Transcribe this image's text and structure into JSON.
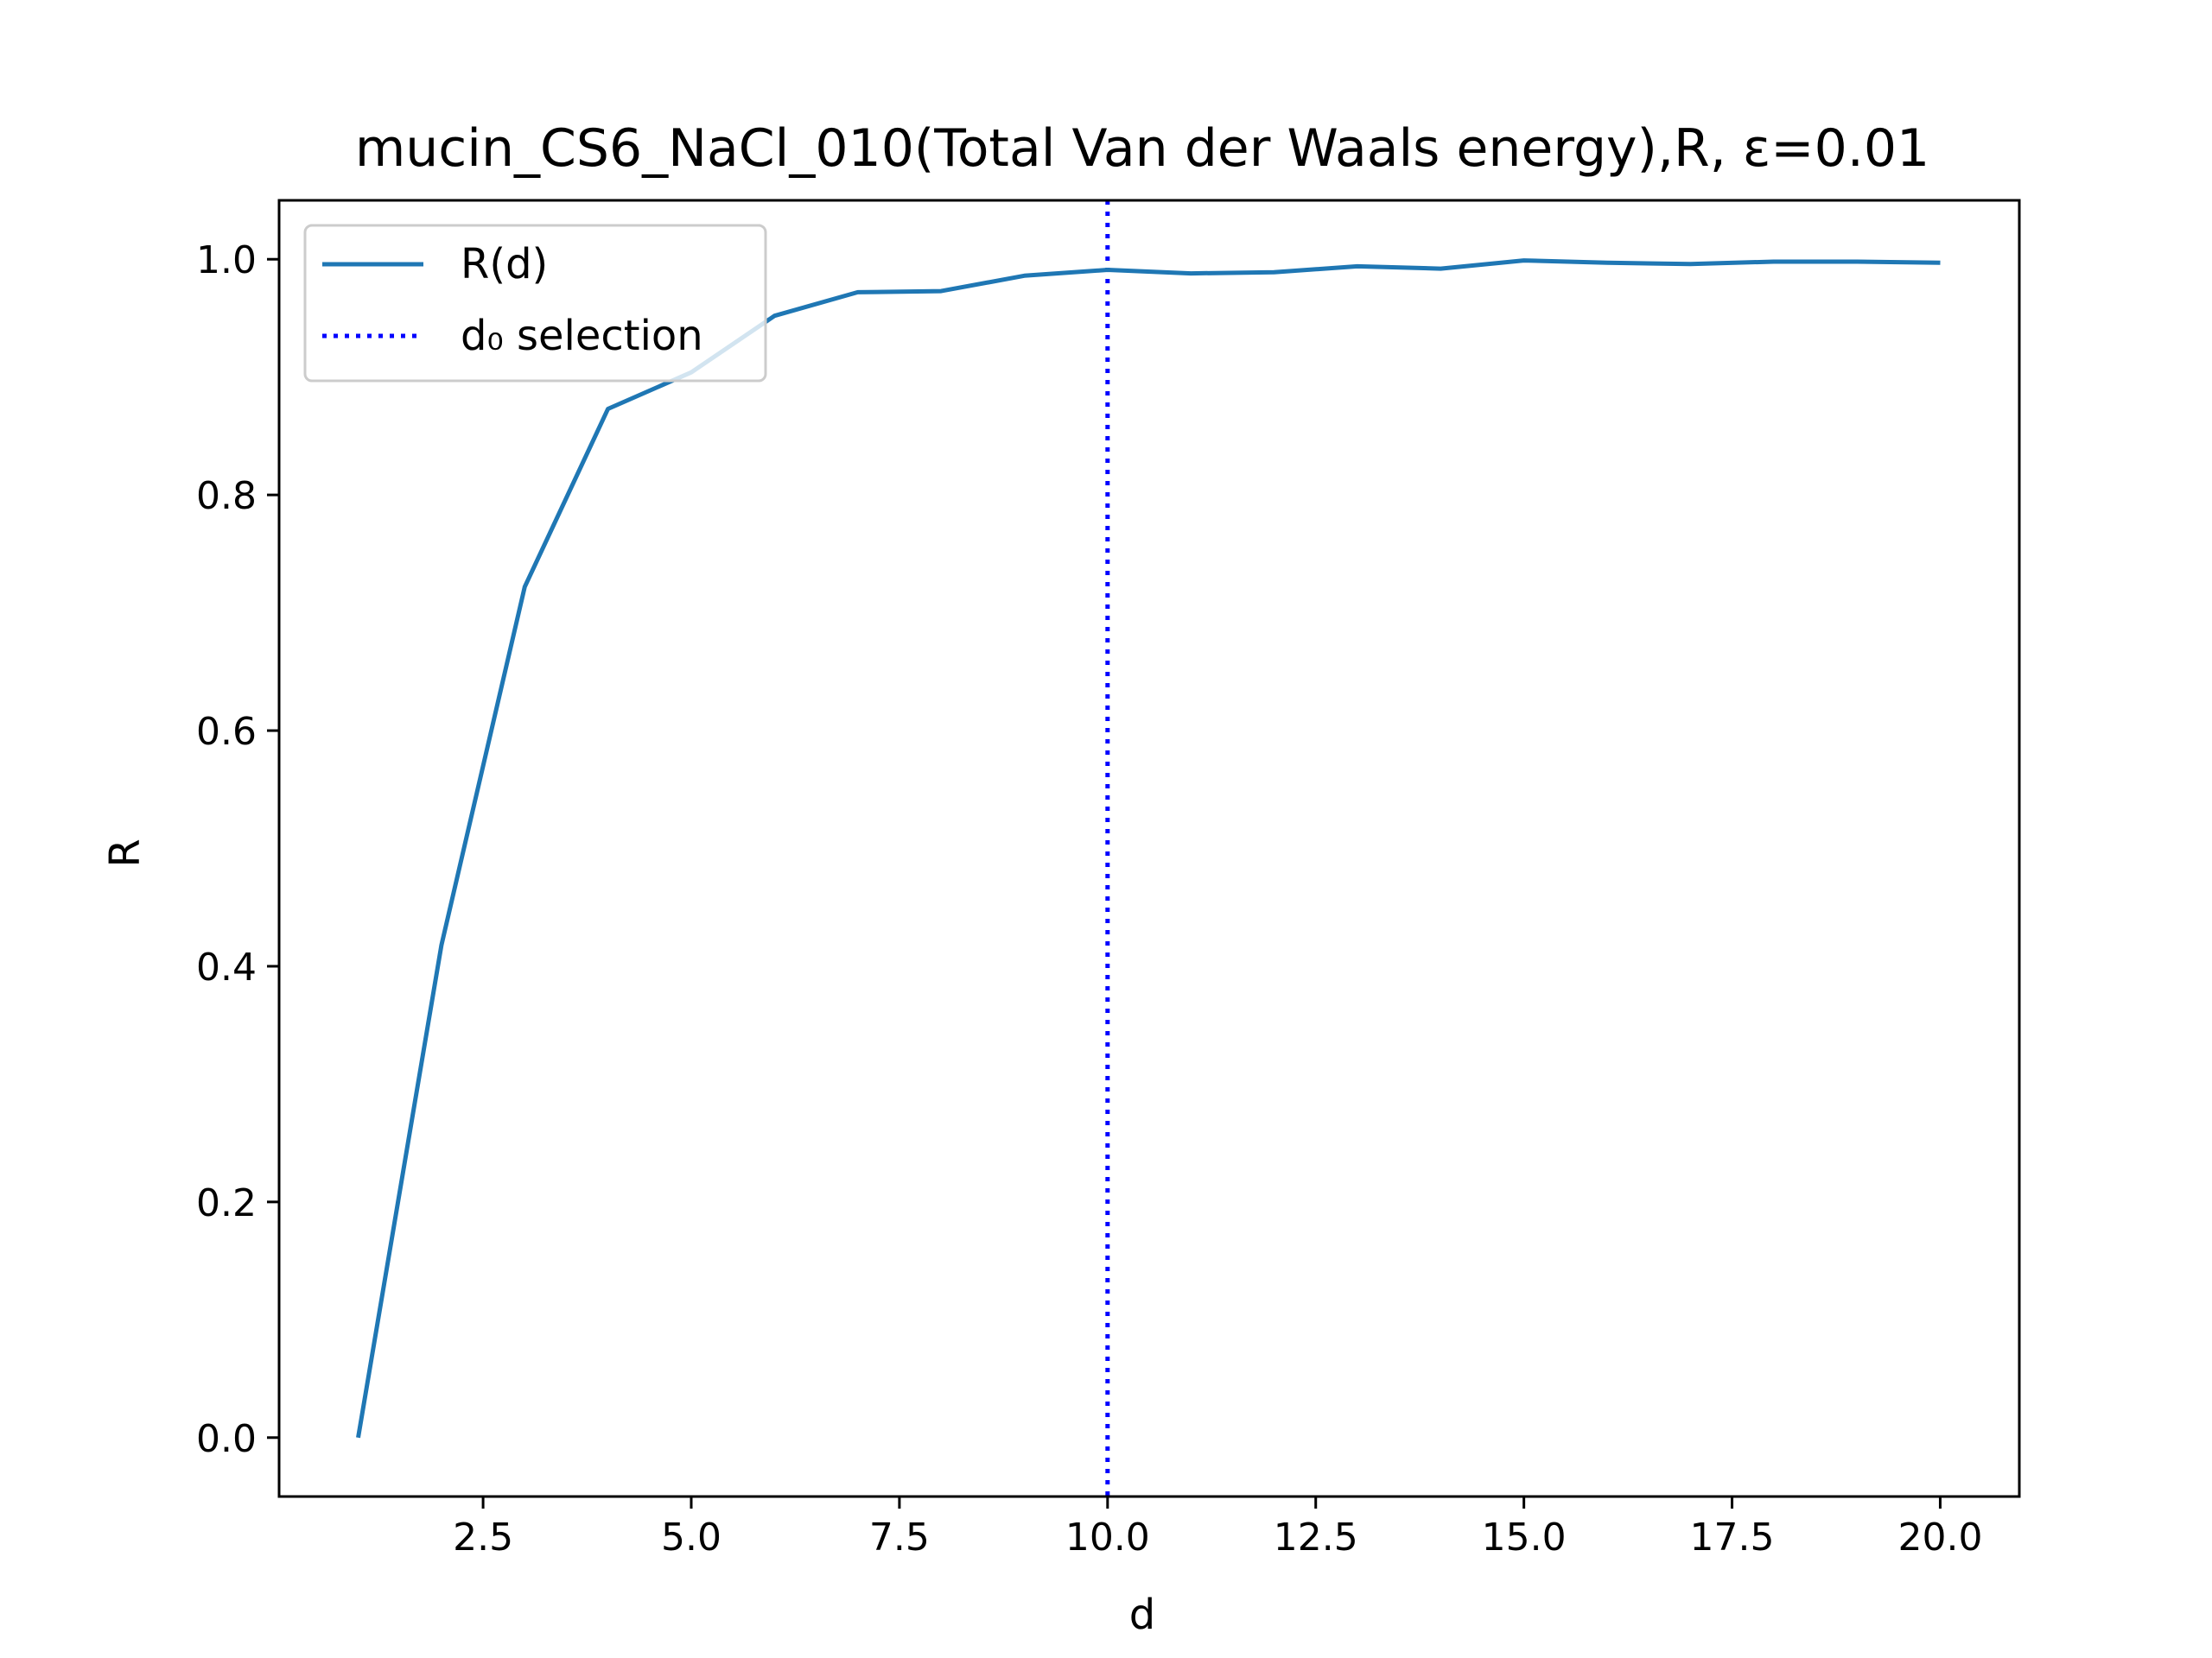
{
  "chart_data": {
    "type": "line",
    "title": "mucin_CS6_NaCl_010(Total Van der Waals energy),R, ε=0.01",
    "xlabel": "d",
    "ylabel": "R",
    "xlim": [
      0.05,
      20.95
    ],
    "ylim": [
      -0.05,
      1.05
    ],
    "xticks": [
      2.5,
      5.0,
      7.5,
      10.0,
      12.5,
      15.0,
      17.5,
      20.0
    ],
    "xtick_labels": [
      "2.5",
      "5.0",
      "7.5",
      "10.0",
      "12.5",
      "15.0",
      "17.5",
      "20.0"
    ],
    "yticks": [
      0.0,
      0.2,
      0.4,
      0.6,
      0.8,
      1.0
    ],
    "ytick_labels": [
      "0.0",
      "0.2",
      "0.4",
      "0.6",
      "0.8",
      "1.0"
    ],
    "grid": false,
    "legend_position": "upper-left",
    "series": [
      {
        "name": "R(d)",
        "color": "#1f77b4",
        "style": "solid",
        "x": [
          1,
          2,
          3,
          4,
          5,
          6,
          7,
          8,
          9,
          10,
          11,
          12,
          13,
          14,
          15,
          16,
          17,
          18,
          19,
          20
        ],
        "y": [
          0.0,
          0.418,
          0.722,
          0.873,
          0.904,
          0.952,
          0.972,
          0.973,
          0.986,
          0.991,
          0.988,
          0.989,
          0.994,
          0.992,
          0.999,
          0.997,
          0.996,
          0.998,
          0.998,
          0.997
        ]
      }
    ],
    "vlines": [
      {
        "name": "d₀ selection",
        "x": 10.0,
        "color": "#0000ff",
        "style": "dotted"
      }
    ]
  }
}
